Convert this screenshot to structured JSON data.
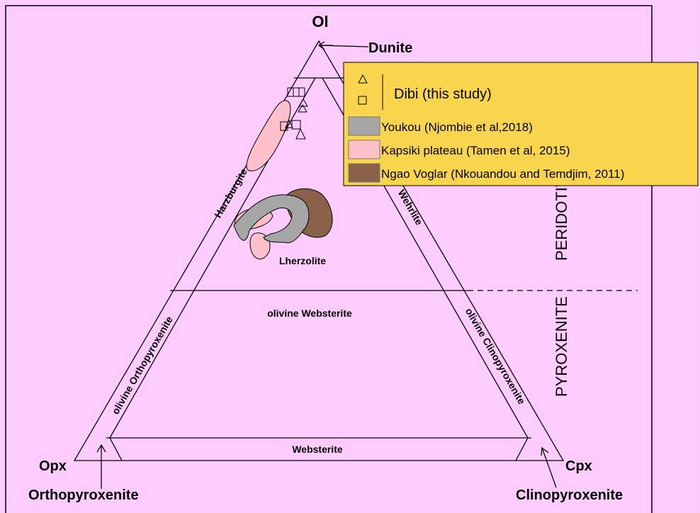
{
  "diagram": {
    "apex": "Ol",
    "dunite": "Dunite",
    "fields": {
      "harzburgite": "Harzburgite",
      "wehrlite": "Wehrlite",
      "lherzolite": "Lherzolite",
      "olivine_websterite": "olivine Websterite",
      "olivine_orthopyroxenite": "olivine Orthopyroxenite",
      "olivine_clinopyroxenite": "olivine Clinopyroxenite",
      "websterite": "Websterite"
    },
    "corners": {
      "left": "Opx",
      "right": "Cpx"
    },
    "corner_fields": {
      "left": "Orthopyroxenite",
      "right": "Clinopyroxenite"
    },
    "groups": {
      "peridotite": "PERIDOTITE",
      "pyroxenite": "PYROXENITE"
    }
  },
  "legend": {
    "items": [
      "Dibi (this study)",
      "Youkou (Njombie et al,2018)",
      "Kapsiki  plateau (Tamen et al, 2015)",
      "Ngao Voglar (Nkouandou and Temdjim, 2011)"
    ]
  }
}
